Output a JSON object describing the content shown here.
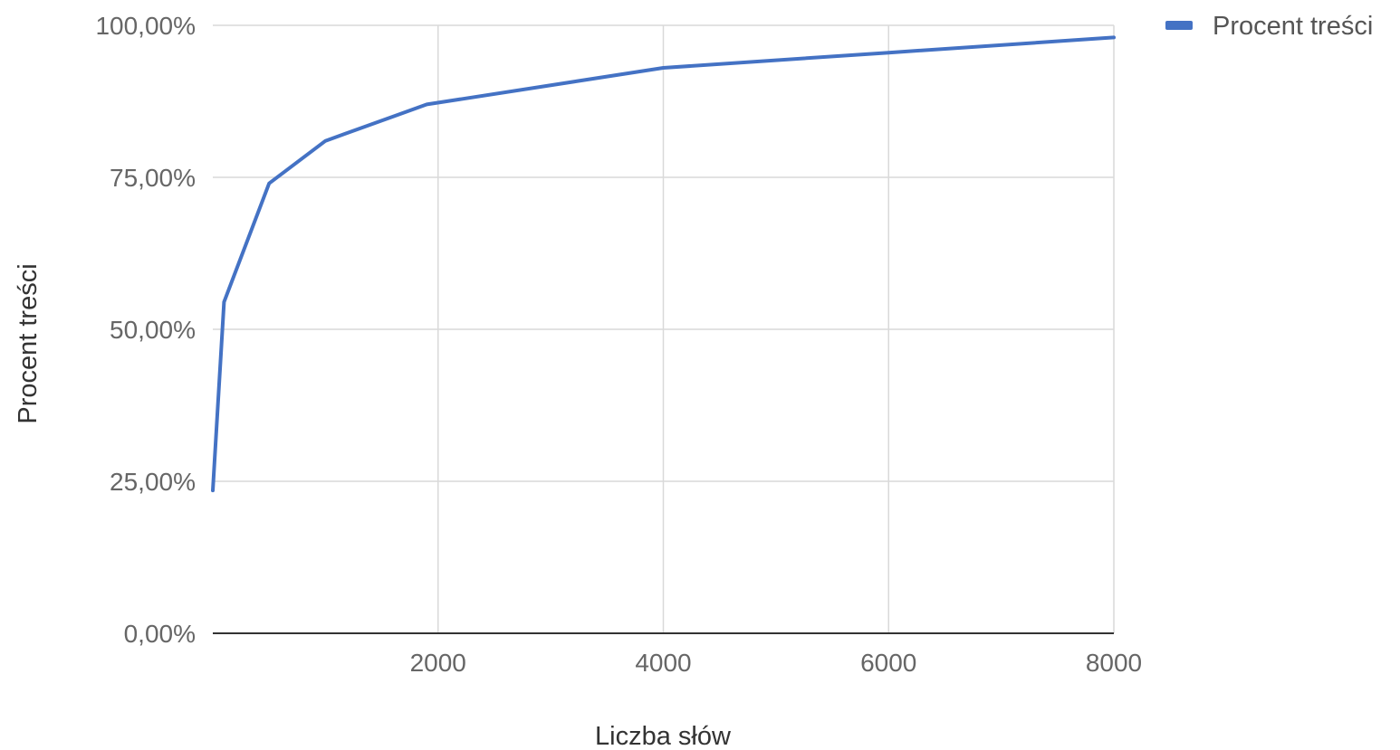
{
  "chart_data": {
    "type": "line",
    "title": "",
    "xlabel": "Liczba słów",
    "ylabel": "Procent treści",
    "xlim": [
      0,
      8000
    ],
    "ylim": [
      0,
      100
    ],
    "x_ticks": [
      2000,
      4000,
      6000,
      8000
    ],
    "x_tick_labels": [
      "2000",
      "4000",
      "6000",
      "8000"
    ],
    "y_ticks": [
      0,
      25,
      50,
      75,
      100
    ],
    "y_tick_labels": [
      "0,00%",
      "25,00%",
      "50,00%",
      "75,00%",
      "100,00%"
    ],
    "grid": true,
    "legend_position": "top-right",
    "series": [
      {
        "name": "Procent treści",
        "color": "#4472c4",
        "x": [
          0,
          100,
          500,
          1000,
          1900,
          4000,
          6000,
          8000
        ],
        "y": [
          23.5,
          54.5,
          74,
          81,
          87,
          93,
          95.5,
          98
        ]
      }
    ]
  }
}
